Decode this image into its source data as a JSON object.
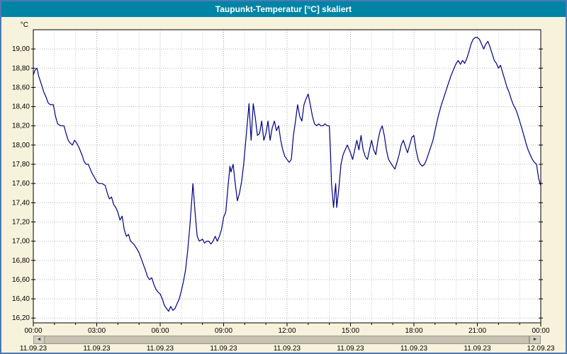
{
  "window": {
    "title": "Taupunkt-Temperatur [°C] skaliert",
    "title_bar_color": "#0084a6",
    "background_color": "#f7f2dc",
    "border_color": "#4a7ab5"
  },
  "scrollbar": {
    "left_arrow": "◄",
    "right_arrow": "►"
  },
  "chart_data": {
    "type": "line",
    "title": "Taupunkt-Temperatur [°C] skaliert",
    "ylabel": "°C",
    "xlabel": "",
    "grid": "dotted",
    "legend": "none",
    "line_color": "#000080",
    "plot_bg": "#ffffff",
    "grid_color_minor": "#c8c8c8",
    "grid_color_major": "#a8a8a8",
    "ylim": [
      16.15,
      19.2
    ],
    "xlim_hours": [
      0,
      24
    ],
    "y_ticks": [
      {
        "value": 16.2,
        "label": "16,20"
      },
      {
        "value": 16.4,
        "label": "16,40"
      },
      {
        "value": 16.6,
        "label": "16,60"
      },
      {
        "value": 16.8,
        "label": "16,80"
      },
      {
        "value": 17.0,
        "label": "17,00"
      },
      {
        "value": 17.2,
        "label": "17,20"
      },
      {
        "value": 17.4,
        "label": "17,40"
      },
      {
        "value": 17.6,
        "label": "17,60"
      },
      {
        "value": 17.8,
        "label": "17,80"
      },
      {
        "value": 18.0,
        "label": "18,00"
      },
      {
        "value": 18.2,
        "label": "18,20"
      },
      {
        "value": 18.4,
        "label": "18,40"
      },
      {
        "value": 18.6,
        "label": "18,60"
      },
      {
        "value": 18.8,
        "label": "18,80"
      },
      {
        "value": 19.0,
        "label": "19,00"
      }
    ],
    "x_ticks": [
      {
        "hour": 0,
        "time": "00:00",
        "date": "11.09.23"
      },
      {
        "hour": 3,
        "time": "03:00",
        "date": "11.09.23"
      },
      {
        "hour": 6,
        "time": "06:00",
        "date": "11.09.23"
      },
      {
        "hour": 9,
        "time": "09:00",
        "date": "11.09.23"
      },
      {
        "hour": 12,
        "time": "12:00",
        "date": "11.09.23"
      },
      {
        "hour": 15,
        "time": "15:00",
        "date": "11.09.23"
      },
      {
        "hour": 18,
        "time": "18:00",
        "date": "11.09.23"
      },
      {
        "hour": 21,
        "time": "21:00",
        "date": "11.09.23"
      },
      {
        "hour": 24,
        "time": "00:00",
        "date": "12.09.23"
      }
    ],
    "series": [
      {
        "name": "Taupunkt-Temperatur",
        "points": [
          [
            0.0,
            18.73
          ],
          [
            0.08,
            18.78
          ],
          [
            0.17,
            18.8
          ],
          [
            0.25,
            18.72
          ],
          [
            0.4,
            18.62
          ],
          [
            0.5,
            18.55
          ],
          [
            0.6,
            18.5
          ],
          [
            0.7,
            18.44
          ],
          [
            0.8,
            18.42
          ],
          [
            0.95,
            18.42
          ],
          [
            1.05,
            18.3
          ],
          [
            1.15,
            18.22
          ],
          [
            1.3,
            18.2
          ],
          [
            1.45,
            18.2
          ],
          [
            1.55,
            18.12
          ],
          [
            1.65,
            18.05
          ],
          [
            1.75,
            18.02
          ],
          [
            1.85,
            18.0
          ],
          [
            1.95,
            18.05
          ],
          [
            2.05,
            18.02
          ],
          [
            2.15,
            17.98
          ],
          [
            2.3,
            17.9
          ],
          [
            2.4,
            17.83
          ],
          [
            2.5,
            17.8
          ],
          [
            2.6,
            17.8
          ],
          [
            2.75,
            17.72
          ],
          [
            2.9,
            17.66
          ],
          [
            3.0,
            17.62
          ],
          [
            3.1,
            17.6
          ],
          [
            3.25,
            17.6
          ],
          [
            3.4,
            17.58
          ],
          [
            3.5,
            17.5
          ],
          [
            3.6,
            17.44
          ],
          [
            3.7,
            17.46
          ],
          [
            3.8,
            17.38
          ],
          [
            3.9,
            17.35
          ],
          [
            4.0,
            17.3
          ],
          [
            4.1,
            17.22
          ],
          [
            4.2,
            17.26
          ],
          [
            4.3,
            17.12
          ],
          [
            4.4,
            17.05
          ],
          [
            4.5,
            17.07
          ],
          [
            4.6,
            17.0
          ],
          [
            4.75,
            16.97
          ],
          [
            4.9,
            16.92
          ],
          [
            5.0,
            16.88
          ],
          [
            5.1,
            16.82
          ],
          [
            5.2,
            16.76
          ],
          [
            5.3,
            16.7
          ],
          [
            5.4,
            16.63
          ],
          [
            5.5,
            16.6
          ],
          [
            5.6,
            16.62
          ],
          [
            5.7,
            16.55
          ],
          [
            5.8,
            16.5
          ],
          [
            5.9,
            16.47
          ],
          [
            6.0,
            16.45
          ],
          [
            6.1,
            16.4
          ],
          [
            6.2,
            16.33
          ],
          [
            6.3,
            16.3
          ],
          [
            6.4,
            16.27
          ],
          [
            6.5,
            16.32
          ],
          [
            6.6,
            16.28
          ],
          [
            6.7,
            16.3
          ],
          [
            6.8,
            16.35
          ],
          [
            6.9,
            16.4
          ],
          [
            7.0,
            16.48
          ],
          [
            7.1,
            16.58
          ],
          [
            7.2,
            16.7
          ],
          [
            7.3,
            16.9
          ],
          [
            7.4,
            17.15
          ],
          [
            7.5,
            17.45
          ],
          [
            7.55,
            17.6
          ],
          [
            7.65,
            17.3
          ],
          [
            7.75,
            17.05
          ],
          [
            7.85,
            17.0
          ],
          [
            8.0,
            17.02
          ],
          [
            8.1,
            16.98
          ],
          [
            8.2,
            17.0
          ],
          [
            8.3,
            17.0
          ],
          [
            8.4,
            16.97
          ],
          [
            8.5,
            17.0
          ],
          [
            8.6,
            17.05
          ],
          [
            8.7,
            17.0
          ],
          [
            8.8,
            17.05
          ],
          [
            8.9,
            17.12
          ],
          [
            9.0,
            17.25
          ],
          [
            9.1,
            17.3
          ],
          [
            9.2,
            17.55
          ],
          [
            9.3,
            17.78
          ],
          [
            9.35,
            17.72
          ],
          [
            9.45,
            17.8
          ],
          [
            9.55,
            17.6
          ],
          [
            9.65,
            17.42
          ],
          [
            9.75,
            17.5
          ],
          [
            9.85,
            17.62
          ],
          [
            9.95,
            17.8
          ],
          [
            10.05,
            18.05
          ],
          [
            10.15,
            18.3
          ],
          [
            10.2,
            18.43
          ],
          [
            10.3,
            18.05
          ],
          [
            10.4,
            18.43
          ],
          [
            10.5,
            18.28
          ],
          [
            10.6,
            18.1
          ],
          [
            10.7,
            18.12
          ],
          [
            10.8,
            18.25
          ],
          [
            10.9,
            18.05
          ],
          [
            11.0,
            18.12
          ],
          [
            11.1,
            18.25
          ],
          [
            11.2,
            18.05
          ],
          [
            11.3,
            18.18
          ],
          [
            11.4,
            18.25
          ],
          [
            11.5,
            18.15
          ],
          [
            11.6,
            18.2
          ],
          [
            11.7,
            18.05
          ],
          [
            11.8,
            17.95
          ],
          [
            11.9,
            17.88
          ],
          [
            12.0,
            17.85
          ],
          [
            12.1,
            17.82
          ],
          [
            12.2,
            17.85
          ],
          [
            12.3,
            18.1
          ],
          [
            12.4,
            18.25
          ],
          [
            12.5,
            18.42
          ],
          [
            12.6,
            18.3
          ],
          [
            12.7,
            18.25
          ],
          [
            12.8,
            18.42
          ],
          [
            12.9,
            18.48
          ],
          [
            13.0,
            18.53
          ],
          [
            13.1,
            18.42
          ],
          [
            13.2,
            18.3
          ],
          [
            13.3,
            18.22
          ],
          [
            13.4,
            18.2
          ],
          [
            13.5,
            18.22
          ],
          [
            13.6,
            18.2
          ],
          [
            13.7,
            18.2
          ],
          [
            13.8,
            18.22
          ],
          [
            13.9,
            18.2
          ],
          [
            14.0,
            18.2
          ],
          [
            14.05,
            17.95
          ],
          [
            14.1,
            17.6
          ],
          [
            14.2,
            17.35
          ],
          [
            14.3,
            17.6
          ],
          [
            14.35,
            17.35
          ],
          [
            14.45,
            17.55
          ],
          [
            14.55,
            17.8
          ],
          [
            14.65,
            17.9
          ],
          [
            14.75,
            17.95
          ],
          [
            14.85,
            18.0
          ],
          [
            15.0,
            17.92
          ],
          [
            15.1,
            17.85
          ],
          [
            15.2,
            17.95
          ],
          [
            15.3,
            18.05
          ],
          [
            15.4,
            17.95
          ],
          [
            15.5,
            18.1
          ],
          [
            15.6,
            17.95
          ],
          [
            15.7,
            17.88
          ],
          [
            15.8,
            17.85
          ],
          [
            15.9,
            17.95
          ],
          [
            16.0,
            18.05
          ],
          [
            16.1,
            17.95
          ],
          [
            16.2,
            17.9
          ],
          [
            16.3,
            18.05
          ],
          [
            16.4,
            18.15
          ],
          [
            16.5,
            18.2
          ],
          [
            16.6,
            18.1
          ],
          [
            16.7,
            17.95
          ],
          [
            16.8,
            17.85
          ],
          [
            17.0,
            17.78
          ],
          [
            17.1,
            17.75
          ],
          [
            17.2,
            17.82
          ],
          [
            17.3,
            17.9
          ],
          [
            17.4,
            18.0
          ],
          [
            17.5,
            18.05
          ],
          [
            17.6,
            17.98
          ],
          [
            17.7,
            17.92
          ],
          [
            17.8,
            18.0
          ],
          [
            17.9,
            18.08
          ],
          [
            18.0,
            18.1
          ],
          [
            18.1,
            17.95
          ],
          [
            18.2,
            17.85
          ],
          [
            18.3,
            17.8
          ],
          [
            18.4,
            17.78
          ],
          [
            18.5,
            17.8
          ],
          [
            18.6,
            17.85
          ],
          [
            18.75,
            17.95
          ],
          [
            18.9,
            18.05
          ],
          [
            19.0,
            18.15
          ],
          [
            19.15,
            18.3
          ],
          [
            19.3,
            18.42
          ],
          [
            19.45,
            18.52
          ],
          [
            19.6,
            18.62
          ],
          [
            19.75,
            18.72
          ],
          [
            19.9,
            18.8
          ],
          [
            20.0,
            18.85
          ],
          [
            20.1,
            18.88
          ],
          [
            20.2,
            18.84
          ],
          [
            20.3,
            18.88
          ],
          [
            20.4,
            18.85
          ],
          [
            20.5,
            18.9
          ],
          [
            20.6,
            18.97
          ],
          [
            20.7,
            19.05
          ],
          [
            20.8,
            19.1
          ],
          [
            20.9,
            19.12
          ],
          [
            21.0,
            19.12
          ],
          [
            21.1,
            19.1
          ],
          [
            21.2,
            19.05
          ],
          [
            21.3,
            19.0
          ],
          [
            21.4,
            19.05
          ],
          [
            21.5,
            19.08
          ],
          [
            21.6,
            19.02
          ],
          [
            21.7,
            18.95
          ],
          [
            21.8,
            18.88
          ],
          [
            21.9,
            18.85
          ],
          [
            22.0,
            18.8
          ],
          [
            22.1,
            18.83
          ],
          [
            22.2,
            18.75
          ],
          [
            22.3,
            18.68
          ],
          [
            22.4,
            18.6
          ],
          [
            22.5,
            18.55
          ],
          [
            22.6,
            18.48
          ],
          [
            22.7,
            18.42
          ],
          [
            22.8,
            18.38
          ],
          [
            22.9,
            18.32
          ],
          [
            23.0,
            18.25
          ],
          [
            23.1,
            18.18
          ],
          [
            23.2,
            18.1
          ],
          [
            23.3,
            18.02
          ],
          [
            23.4,
            17.95
          ],
          [
            23.5,
            17.9
          ],
          [
            23.6,
            17.85
          ],
          [
            23.7,
            17.82
          ],
          [
            23.8,
            17.8
          ],
          [
            23.9,
            17.65
          ],
          [
            24.0,
            17.58
          ]
        ]
      }
    ]
  }
}
